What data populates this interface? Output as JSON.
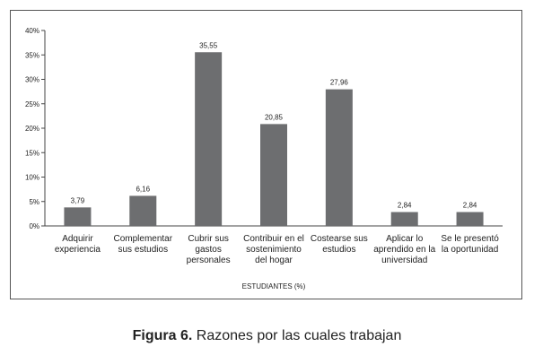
{
  "chart_data": {
    "type": "bar",
    "categories": [
      [
        "Adquirir",
        "experiencia"
      ],
      [
        "Complementar",
        "sus estudios"
      ],
      [
        "Cubrir sus",
        "gastos",
        "personales"
      ],
      [
        "Contribuir en el",
        "sostenimiento",
        "del hogar"
      ],
      [
        "Costearse sus",
        "estudios"
      ],
      [
        "Aplicar lo",
        "aprendido en la",
        "universidad"
      ],
      [
        "Se le presentó",
        "la oportunidad"
      ]
    ],
    "values": [
      3.79,
      6.16,
      35.55,
      20.85,
      27.96,
      2.84,
      2.84
    ],
    "data_labels": [
      "3,79",
      "6,16",
      "35,55",
      "20,85",
      "27,96",
      "2,84",
      "2,84"
    ],
    "y_ticks": [
      0,
      5,
      10,
      15,
      20,
      25,
      30,
      35,
      40
    ],
    "y_tick_labels": [
      "0%",
      "5%",
      "10%",
      "15%",
      "20%",
      "25%",
      "30%",
      "35%",
      "40%"
    ],
    "ylim": [
      0,
      40
    ],
    "xlabel": "ESTUDIANTES (%)",
    "ylabel": "",
    "grid": false,
    "bar_color": "#6d6e70"
  },
  "caption": {
    "label": "Figura 6.",
    "text": " Razones por las cuales trabajan"
  }
}
